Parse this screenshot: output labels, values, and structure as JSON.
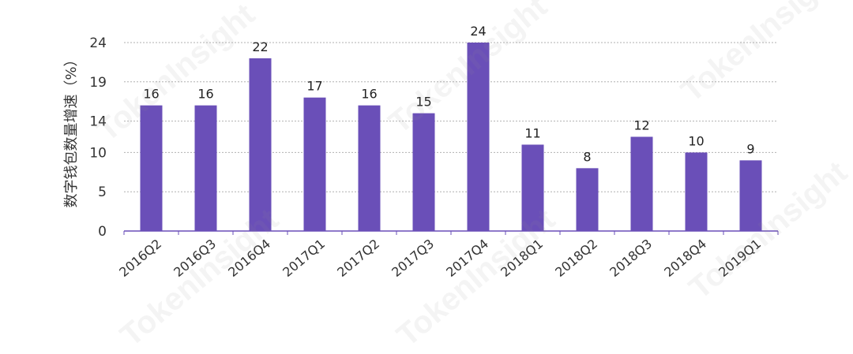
{
  "chart_data": {
    "type": "bar",
    "title": "",
    "xlabel": "",
    "ylabel": "数字钱包数量增速（%）",
    "categories": [
      "2016Q2",
      "2016Q3",
      "2016Q4",
      "2017Q1",
      "2017Q2",
      "2017Q3",
      "2017Q4",
      "2018Q1",
      "2018Q2",
      "2018Q3",
      "2018Q4",
      "2019Q1"
    ],
    "values": [
      16,
      16,
      22,
      17,
      16,
      15,
      24,
      11,
      8,
      12,
      10,
      9
    ],
    "ylim": [
      0,
      24
    ],
    "yticks": [
      0,
      5,
      10,
      14,
      19,
      24
    ],
    "grid": true,
    "bar_color": "#6a4fb8",
    "grid_color": "#b0b0b0",
    "axis_color": "#6a4fb8"
  },
  "watermark": {
    "text": "TokenInsight"
  }
}
